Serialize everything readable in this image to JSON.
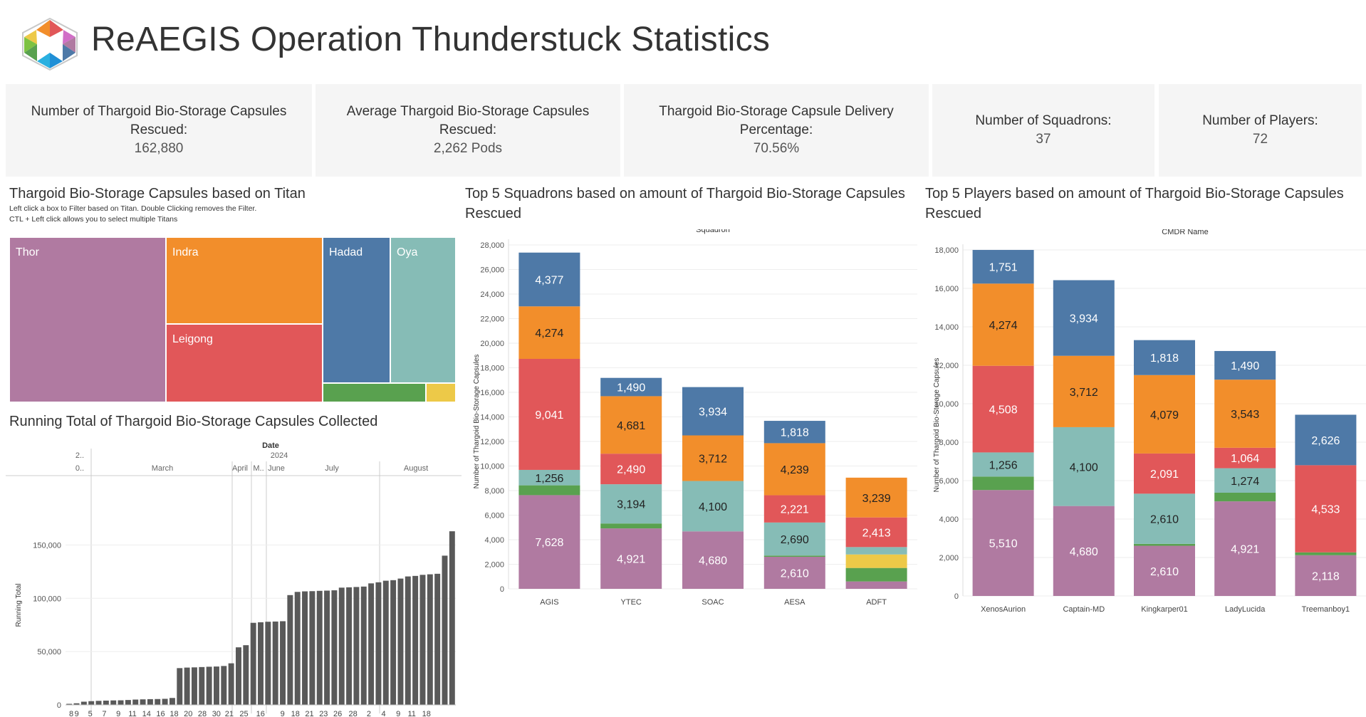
{
  "header": {
    "title": "ReAEGIS Operation Thunderstuck Statistics"
  },
  "kpis": [
    {
      "label": "Number of Thargoid Bio-Storage Capsules Rescued:",
      "value": "162,880"
    },
    {
      "label": "Average Thargoid Bio-Storage Capsules Rescued:",
      "value": "2,262 Pods"
    },
    {
      "label": "Thargoid Bio-Storage Capsule Delivery Percentage:",
      "value": "70.56%"
    },
    {
      "label": "Number of Squadrons:",
      "value": "37"
    },
    {
      "label": "Number of Players:",
      "value": "72"
    }
  ],
  "colors": {
    "thor": "#b07aa1",
    "indra": "#f28e2b",
    "leigong": "#e15759",
    "hadad": "#4e79a7",
    "oya": "#86bcb6",
    "green": "#59a14f",
    "yellow": "#edc948",
    "running": "#595959"
  },
  "treemap": {
    "title": "Thargoid Bio-Storage Capsules based on Titan",
    "note1": "Left click a box to Filter based on Titan. Double Clicking removes the Filter.",
    "note2": "CTL + Left click allows you to select multiple Titans",
    "tiles": [
      {
        "label": "Thor",
        "color": "#b07aa1"
      },
      {
        "label": "Indra",
        "color": "#f28e2b"
      },
      {
        "label": "Leigong",
        "color": "#e15759"
      },
      {
        "label": "Hadad",
        "color": "#4e79a7"
      },
      {
        "label": "Oya",
        "color": "#86bcb6"
      },
      {
        "label": "",
        "color": "#59a14f"
      },
      {
        "label": "",
        "color": "#edc948"
      }
    ]
  },
  "chart_data": [
    {
      "type": "bar",
      "title": "Running Total of Thargoid Bio-Storage Capsules  Collected",
      "xlabel": "Date",
      "ylabel": "Running Total",
      "year_label": "2024",
      "year_row": [
        "2..",
        "0.."
      ],
      "month_labels": [
        "March",
        "April",
        "M..",
        "June",
        "July",
        "August"
      ],
      "day_labels": [
        "8",
        "9",
        "5",
        "7",
        "9",
        "11",
        "14",
        "16",
        "18",
        "20",
        "28",
        "30",
        "21",
        "25",
        "16",
        "9",
        "18",
        "21",
        "23",
        "26",
        "28",
        "2",
        "4",
        "9",
        "11",
        "18"
      ],
      "yticks": [
        "0",
        "50,000",
        "100,000",
        "150,000"
      ],
      "ylim": [
        0,
        175000
      ],
      "values": [
        1000,
        1500,
        3000,
        3500,
        3800,
        4000,
        4200,
        4300,
        4600,
        5000,
        5200,
        5400,
        5500,
        5700,
        6500,
        34500,
        35000,
        35200,
        35500,
        35800,
        36000,
        36500,
        39000,
        54000,
        56000,
        77000,
        77500,
        78000,
        78200,
        78500,
        103000,
        106000,
        106500,
        106700,
        107000,
        107200,
        107500,
        110000,
        110300,
        110600,
        111000,
        114000,
        115000,
        116500,
        117000,
        118500,
        120500,
        121000,
        122000,
        122500,
        123000,
        140000,
        162880
      ]
    },
    {
      "type": "bar",
      "stacked": true,
      "title": "Top 5 Squadrons based on amount of Thargoid Bio-Storage Capsules Rescued",
      "xlabel": "Squadron",
      "ylabel": "Number of Thargoid Bio-Storage Capsules",
      "ylim": [
        0,
        28000
      ],
      "yticks": [
        "0",
        "2,000",
        "4,000",
        "6,000",
        "8,000",
        "10,000",
        "12,000",
        "14,000",
        "16,000",
        "18,000",
        "20,000",
        "22,000",
        "24,000",
        "26,000",
        "28,000"
      ],
      "categories": [
        "AGIS",
        "YTEC",
        "SOAC",
        "AESA",
        "ADFT"
      ],
      "series": [
        {
          "name": "Thor",
          "color": "#b07aa1",
          "values": [
            7628,
            4921,
            4680,
            2610,
            600
          ],
          "labels": [
            "7,628",
            "4,921",
            "4,680",
            "2,610",
            ""
          ]
        },
        {
          "name": "Green",
          "color": "#59a14f",
          "values": [
            800,
            400,
            0,
            100,
            1100
          ],
          "labels": [
            "",
            "",
            "",
            "",
            ""
          ]
        },
        {
          "name": "Yellow",
          "color": "#edc948",
          "values": [
            0,
            0,
            0,
            0,
            1100
          ],
          "labels": [
            "",
            "",
            "",
            "",
            ""
          ]
        },
        {
          "name": "Oya",
          "color": "#86bcb6",
          "values": [
            1256,
            3194,
            4100,
            2690,
            600
          ],
          "labels": [
            "1,256",
            "3,194",
            "4,100",
            "2,690",
            ""
          ]
        },
        {
          "name": "Leigong",
          "color": "#e15759",
          "values": [
            9041,
            2490,
            0,
            2221,
            2413
          ],
          "labels": [
            "9,041",
            "2,490",
            "",
            "2,221",
            "2,413"
          ]
        },
        {
          "name": "Indra",
          "color": "#f28e2b",
          "values": [
            4274,
            4681,
            3712,
            4239,
            3239
          ],
          "labels": [
            "4,274",
            "4,681",
            "3,712",
            "4,239",
            "3,239"
          ]
        },
        {
          "name": "Hadad",
          "color": "#4e79a7",
          "values": [
            4377,
            1490,
            3934,
            1818,
            0
          ],
          "labels": [
            "4,377",
            "1,490",
            "3,934",
            "1,818",
            ""
          ]
        }
      ]
    },
    {
      "type": "bar",
      "stacked": true,
      "title": "Top 5 Players based on amount of Thargoid Bio-Storage Capsules Rescued",
      "xlabel": "CMDR Name",
      "ylabel": "Number of Thargoid Bio-Storage Capsules",
      "ylim": [
        0,
        18000
      ],
      "yticks": [
        "0",
        "2,000",
        "4,000",
        "6,000",
        "8,000",
        "10,000",
        "12,000",
        "14,000",
        "16,000",
        "18,000"
      ],
      "categories": [
        "XenosAurion",
        "Captain-MD",
        "Kingkarper01",
        "LadyLucida",
        "Treemanboy1"
      ],
      "series": [
        {
          "name": "Thor",
          "color": "#b07aa1",
          "values": [
            5510,
            4680,
            2610,
            4921,
            2118
          ],
          "labels": [
            "5,510",
            "4,680",
            "2,610",
            "4,921",
            "2,118"
          ]
        },
        {
          "name": "Green",
          "color": "#59a14f",
          "values": [
            700,
            0,
            100,
            450,
            150
          ],
          "labels": [
            "",
            "",
            "",
            "",
            ""
          ]
        },
        {
          "name": "Oya",
          "color": "#86bcb6",
          "values": [
            1256,
            4100,
            2610,
            1274,
            0
          ],
          "labels": [
            "1,256",
            "4,100",
            "2,610",
            "1,274",
            ""
          ]
        },
        {
          "name": "Leigong",
          "color": "#e15759",
          "values": [
            4508,
            0,
            2091,
            1064,
            4533
          ],
          "labels": [
            "4,508",
            "",
            "2,091",
            "1,064",
            "4,533"
          ]
        },
        {
          "name": "Indra",
          "color": "#f28e2b",
          "values": [
            4274,
            3712,
            4079,
            3543,
            0
          ],
          "labels": [
            "4,274",
            "3,712",
            "4,079",
            "3,543",
            ""
          ]
        },
        {
          "name": "Hadad",
          "color": "#4e79a7",
          "values": [
            1751,
            3934,
            1818,
            1490,
            2626
          ],
          "labels": [
            "1,751",
            "3,934",
            "1,818",
            "1,490",
            "2,626"
          ]
        }
      ]
    }
  ]
}
